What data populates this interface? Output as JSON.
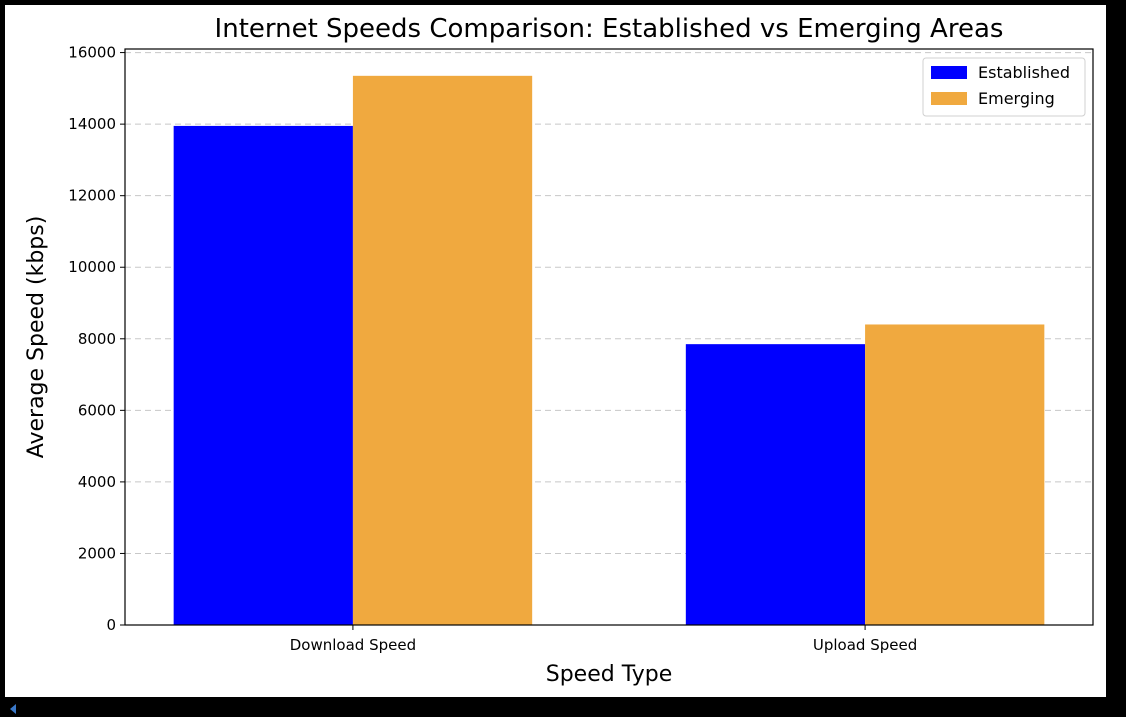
{
  "chart_data": {
    "type": "bar",
    "title": "Internet Speeds Comparison: Established vs Emerging Areas",
    "xlabel": "Speed Type",
    "ylabel": "Average Speed (kbps)",
    "categories": [
      "Download Speed",
      "Upload Speed"
    ],
    "series": [
      {
        "name": "Established",
        "color": "#0000ff",
        "values": [
          13950,
          7850
        ]
      },
      {
        "name": "Emerging",
        "color": "#f0a93f",
        "values": [
          15350,
          8400
        ]
      }
    ],
    "ylim": [
      0,
      16100
    ],
    "yticks": [
      0,
      2000,
      4000,
      6000,
      8000,
      10000,
      12000,
      14000,
      16000
    ],
    "grid": "y-dashed",
    "legend": "top-right"
  }
}
